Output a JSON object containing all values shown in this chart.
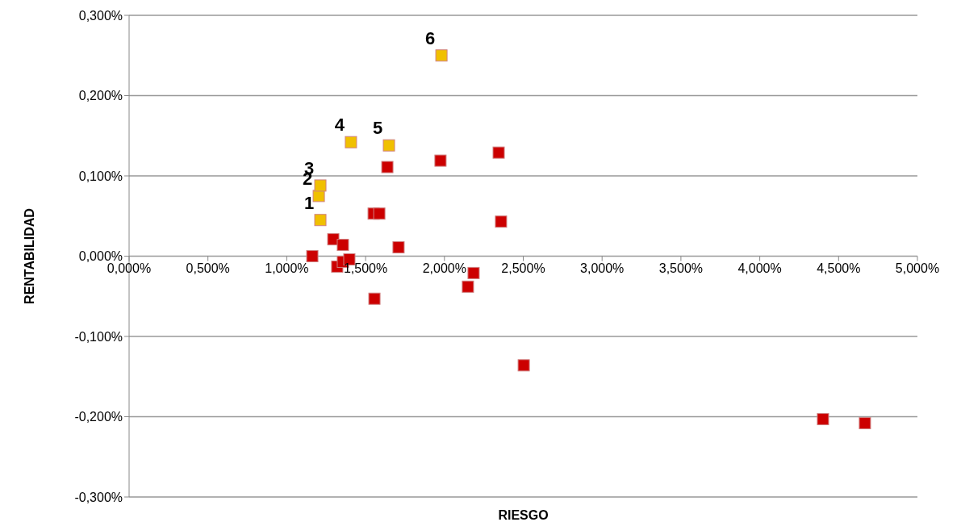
{
  "chart_data": {
    "type": "scatter",
    "xlabel": "RIESGO",
    "ylabel": "RENTABILIDAD",
    "xlim": [
      0,
      5
    ],
    "ylim": [
      -0.3,
      0.3
    ],
    "xticks": [
      {
        "value": 0,
        "label": "0,000%"
      },
      {
        "value": 0.5,
        "label": "0,500%"
      },
      {
        "value": 1,
        "label": "1,000%"
      },
      {
        "value": 1.5,
        "label": "1,500%"
      },
      {
        "value": 2,
        "label": "2,000%"
      },
      {
        "value": 2.5,
        "label": "2,500%"
      },
      {
        "value": 3,
        "label": "3,000%"
      },
      {
        "value": 3.5,
        "label": "3,500%"
      },
      {
        "value": 4,
        "label": "4,000%"
      },
      {
        "value": 4.5,
        "label": "4,500%"
      },
      {
        "value": 5,
        "label": "5,000%"
      }
    ],
    "yticks": [
      {
        "value": -0.3,
        "label": "-0,300%"
      },
      {
        "value": -0.2,
        "label": "-0,200%"
      },
      {
        "value": -0.1,
        "label": "-0,100%"
      },
      {
        "value": 0,
        "label": "0,000%"
      },
      {
        "value": 0.1,
        "label": "0,100%"
      },
      {
        "value": 0.2,
        "label": "0,200%"
      },
      {
        "value": 0.3,
        "label": "0,300%"
      }
    ],
    "grid": "y",
    "marker": "square",
    "legend": false,
    "series": [
      {
        "color": "#cc0000",
        "x": [
          1.162,
          1.295,
          1.356,
          1.32,
          1.356,
          1.397,
          1.551,
          1.587,
          1.638,
          1.709,
          1.975,
          2.344,
          2.359,
          1.556,
          2.185,
          2.149,
          2.503,
          4.401,
          4.667
        ],
        "values": [
          0.0,
          0.021,
          0.014,
          -0.013,
          -0.007,
          -0.004,
          0.053,
          0.053,
          0.111,
          0.011,
          0.119,
          0.129,
          0.043,
          -0.053,
          -0.021,
          -0.038,
          -0.136,
          -0.203,
          -0.208
        ]
      },
      {
        "color": "#f0c000",
        "x": [
          1.213,
          1.203,
          1.213,
          1.407,
          1.648,
          1.981
        ],
        "values": [
          0.045,
          0.075,
          0.088,
          0.142,
          0.138,
          0.25
        ]
      }
    ],
    "annotations": [
      {
        "text": "1",
        "x": 1.213,
        "y": 0.045
      },
      {
        "text": "2",
        "x": 1.203,
        "y": 0.075
      },
      {
        "text": "3",
        "x": 1.213,
        "y": 0.088
      },
      {
        "text": "4",
        "x": 1.407,
        "y": 0.142
      },
      {
        "text": "5",
        "x": 1.648,
        "y": 0.138
      },
      {
        "text": "6",
        "x": 1.981,
        "y": 0.25
      }
    ]
  }
}
